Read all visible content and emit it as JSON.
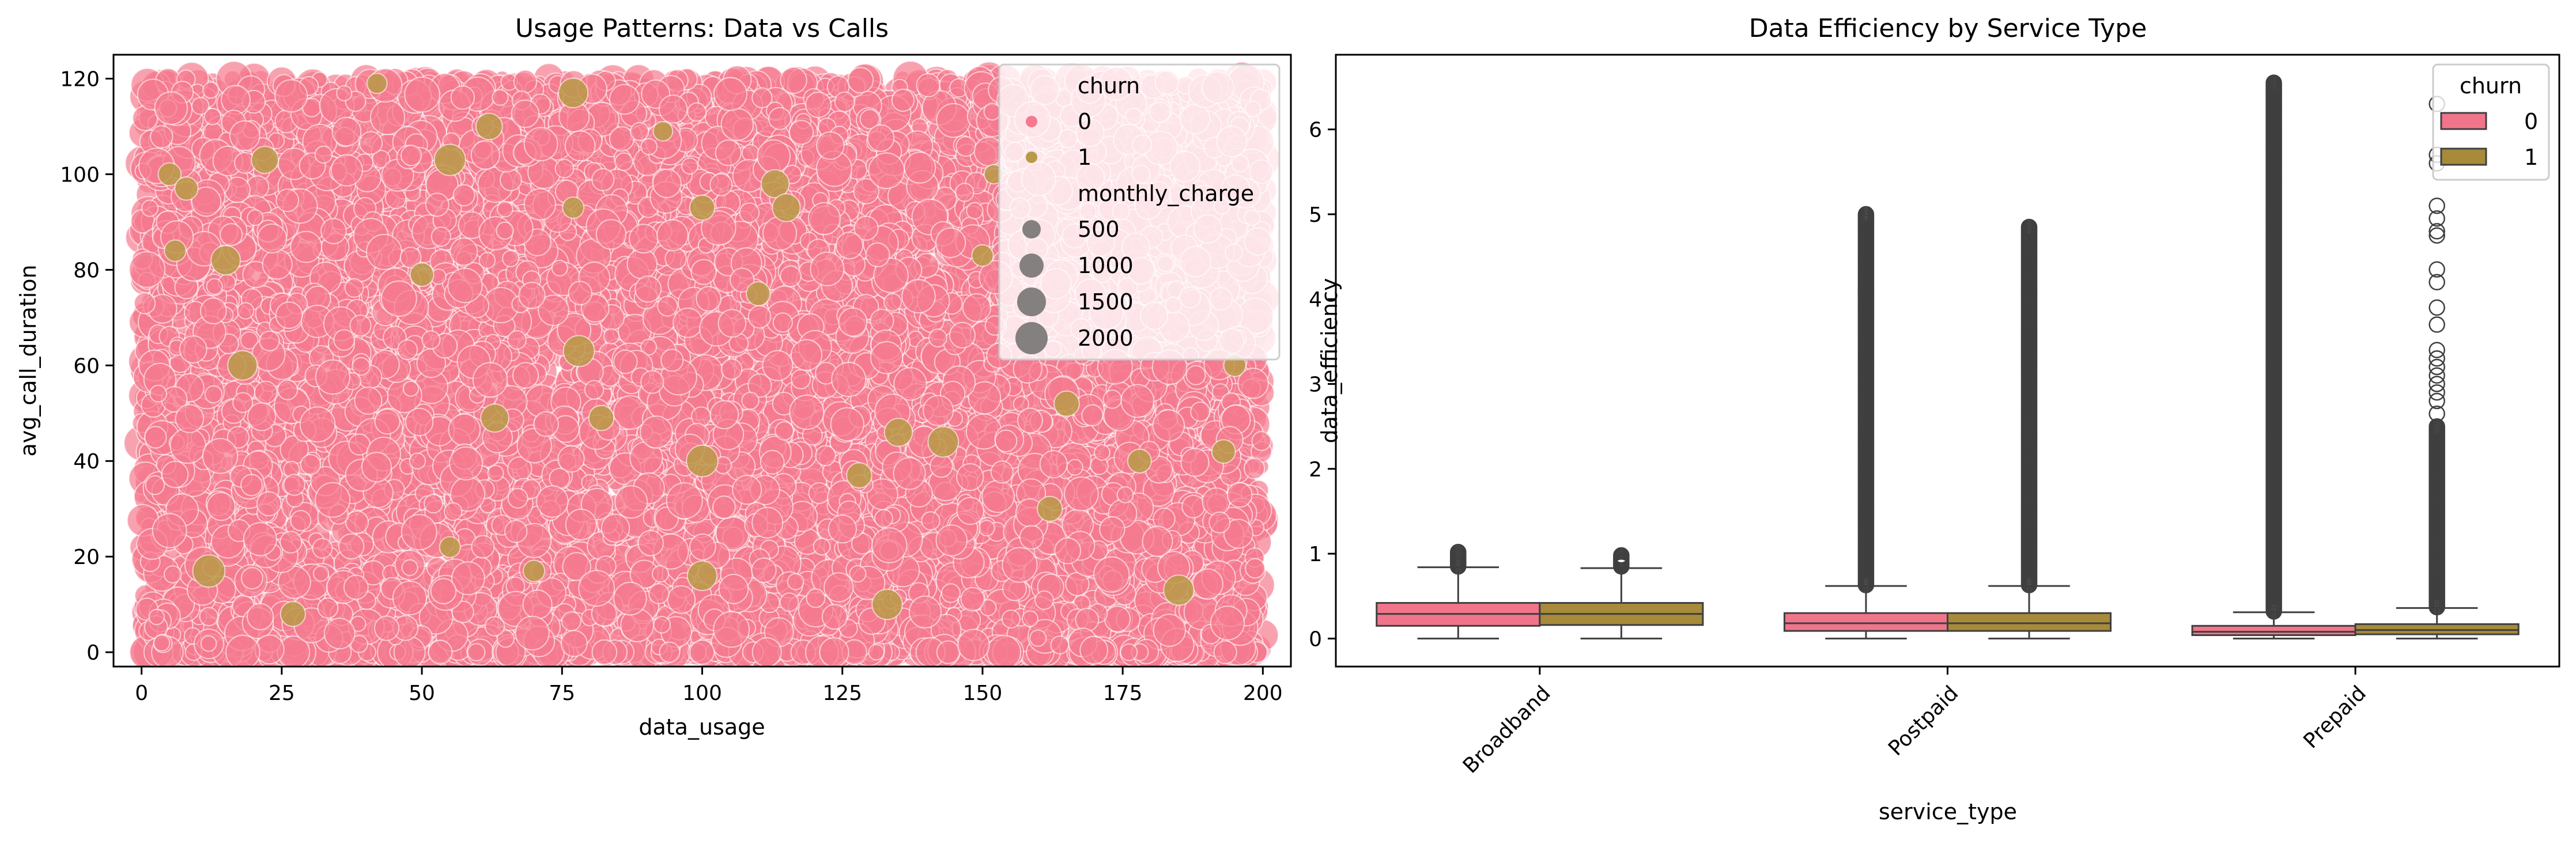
{
  "colors": {
    "churn0": "#f0758b",
    "churn1": "#a78b3a",
    "scatter_churn0": "#f57a8f",
    "scatter_churn1": "#b89a48",
    "whisker": "#3f3f3f",
    "size_marker": "#858080"
  },
  "chart_data": [
    {
      "type": "scatter",
      "title": "Usage Patterns: Data vs Calls",
      "xlabel": "data_usage",
      "ylabel": "avg_call_duration",
      "xlim": [
        -5,
        205
      ],
      "ylim": [
        -3,
        125
      ],
      "xticks": [
        0,
        25,
        50,
        75,
        100,
        125,
        150,
        175,
        200
      ],
      "yticks": [
        0,
        20,
        40,
        60,
        80,
        100,
        120
      ],
      "data_range": {
        "x": [
          0,
          200
        ],
        "y": [
          0,
          120
        ]
      },
      "grid": false,
      "legend": {
        "placement": "top-right",
        "hue_title": "churn",
        "hue_entries": [
          "0",
          "1"
        ],
        "size_title": "monthly_charge",
        "size_entries": [
          "500",
          "1000",
          "1500",
          "2000"
        ]
      },
      "series": [
        {
          "name": "0",
          "approx_points": 11000
        },
        {
          "name": "1",
          "points": [
            [
              5,
              100
            ],
            [
              8,
              97
            ],
            [
              6,
              84
            ],
            [
              15,
              82
            ],
            [
              18,
              60
            ],
            [
              22,
              103
            ],
            [
              27,
              8
            ],
            [
              42,
              119
            ],
            [
              55,
              103
            ],
            [
              50,
              79
            ],
            [
              55,
              22
            ],
            [
              63,
              49
            ],
            [
              62,
              110
            ],
            [
              77,
              117
            ],
            [
              77,
              93
            ],
            [
              78,
              63
            ],
            [
              82,
              49
            ],
            [
              93,
              109
            ],
            [
              100,
              93
            ],
            [
              100,
              40
            ],
            [
              100,
              16
            ],
            [
              110,
              75
            ],
            [
              113,
              98
            ],
            [
              115,
              93
            ],
            [
              133,
              10
            ],
            [
              135,
              46
            ],
            [
              143,
              44
            ],
            [
              150,
              83
            ],
            [
              152,
              100
            ],
            [
              162,
              30
            ],
            [
              165,
              52
            ],
            [
              178,
              40
            ],
            [
              185,
              13
            ],
            [
              193,
              42
            ],
            [
              195,
              60
            ],
            [
              12,
              17
            ],
            [
              70,
              17
            ],
            [
              128,
              37
            ]
          ]
        }
      ]
    },
    {
      "type": "box",
      "title": "Data Efficiency by Service Type",
      "xlabel": "service_type",
      "ylabel": "data_efficiency",
      "ylim": [
        -0.33,
        6.88
      ],
      "yticks": [
        0,
        1,
        2,
        3,
        4,
        5,
        6
      ],
      "categories": [
        "Broadband",
        "Postpaid",
        "Prepaid"
      ],
      "grid": false,
      "legend": {
        "placement": "top-right",
        "title": "churn",
        "entries": [
          "0",
          "1"
        ]
      },
      "series": [
        {
          "name": "0",
          "boxes": [
            {
              "whislo": 0.0,
              "q1": 0.15,
              "med": 0.29,
              "q3": 0.42,
              "whishi": 0.84,
              "fliers_from": 0.85,
              "fliers_to": 1.02,
              "dense": true
            },
            {
              "whislo": 0.0,
              "q1": 0.09,
              "med": 0.18,
              "q3": 0.3,
              "whishi": 0.62,
              "fliers_from": 0.63,
              "fliers_to": 5.0,
              "dense": true
            },
            {
              "whislo": 0.0,
              "q1": 0.04,
              "med": 0.08,
              "q3": 0.15,
              "whishi": 0.31,
              "fliers_from": 0.32,
              "fliers_to": 6.55,
              "dense": true
            }
          ]
        },
        {
          "name": "1",
          "boxes": [
            {
              "whislo": 0.0,
              "q1": 0.16,
              "med": 0.29,
              "q3": 0.42,
              "whishi": 0.83,
              "fliers_from": 0.85,
              "fliers_to": 0.98,
              "dense": true
            },
            {
              "whislo": 0.0,
              "q1": 0.09,
              "med": 0.18,
              "q3": 0.3,
              "whishi": 0.62,
              "fliers_from": 0.63,
              "fliers_to": 4.85,
              "dense": true
            },
            {
              "whislo": 0.0,
              "q1": 0.05,
              "med": 0.1,
              "q3": 0.17,
              "whishi": 0.36,
              "fliers_from": 0.37,
              "fliers_to": 2.5,
              "dense": true,
              "extra_fliers": [
                2.65,
                2.8,
                2.9,
                3.0,
                3.1,
                3.2,
                3.3,
                3.4,
                3.7,
                3.9,
                4.2,
                4.35,
                4.75,
                4.8,
                4.95,
                5.1,
                5.6,
                5.7,
                6.3
              ]
            }
          ]
        }
      ]
    }
  ]
}
